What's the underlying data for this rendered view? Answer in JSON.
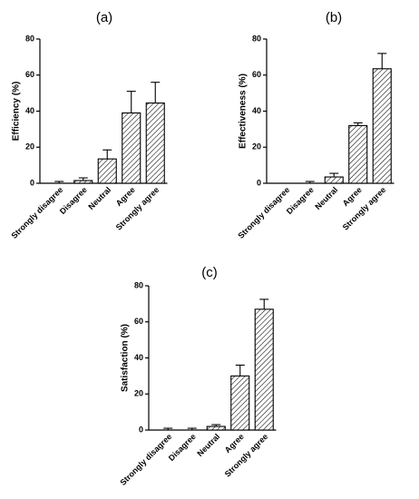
{
  "chart_data": [
    {
      "type": "bar",
      "panel_label": "(a)",
      "categories": [
        "Strongly disagree",
        "Disagree",
        "Neutral",
        "Agree",
        "Strongly agree"
      ],
      "values": [
        0,
        1.5,
        13.5,
        39,
        44.5
      ],
      "errors": [
        1,
        1.5,
        5,
        12,
        11.5
      ],
      "ylabel": "Efficiency (%)",
      "xlabel": "",
      "ylim": [
        0,
        80
      ],
      "yticks": [
        0,
        20,
        40,
        60,
        80
      ],
      "bar_fill": "hatched"
    },
    {
      "type": "bar",
      "panel_label": "(b)",
      "categories": [
        "Strongly disagree",
        "Disagree",
        "Neutral",
        "Agree",
        "Strongly agree"
      ],
      "values": [
        0,
        0,
        3.5,
        32,
        63.5
      ],
      "errors": [
        0,
        1,
        2,
        1.5,
        8.5
      ],
      "ylabel": "Effectiveness (%)",
      "xlabel": "",
      "ylim": [
        0,
        80
      ],
      "yticks": [
        0,
        20,
        40,
        60,
        80
      ],
      "bar_fill": "hatched"
    },
    {
      "type": "bar",
      "panel_label": "(c)",
      "categories": [
        "Strongly disagree",
        "Disagree",
        "Neutral",
        "Agree",
        "Strongly agree"
      ],
      "values": [
        0,
        0,
        2,
        30,
        67
      ],
      "errors": [
        1,
        1,
        1,
        6,
        5.5
      ],
      "ylabel": "Satisfaction (%)",
      "xlabel": "",
      "ylim": [
        0,
        80
      ],
      "yticks": [
        0,
        20,
        40,
        60,
        80
      ],
      "bar_fill": "hatched"
    }
  ]
}
